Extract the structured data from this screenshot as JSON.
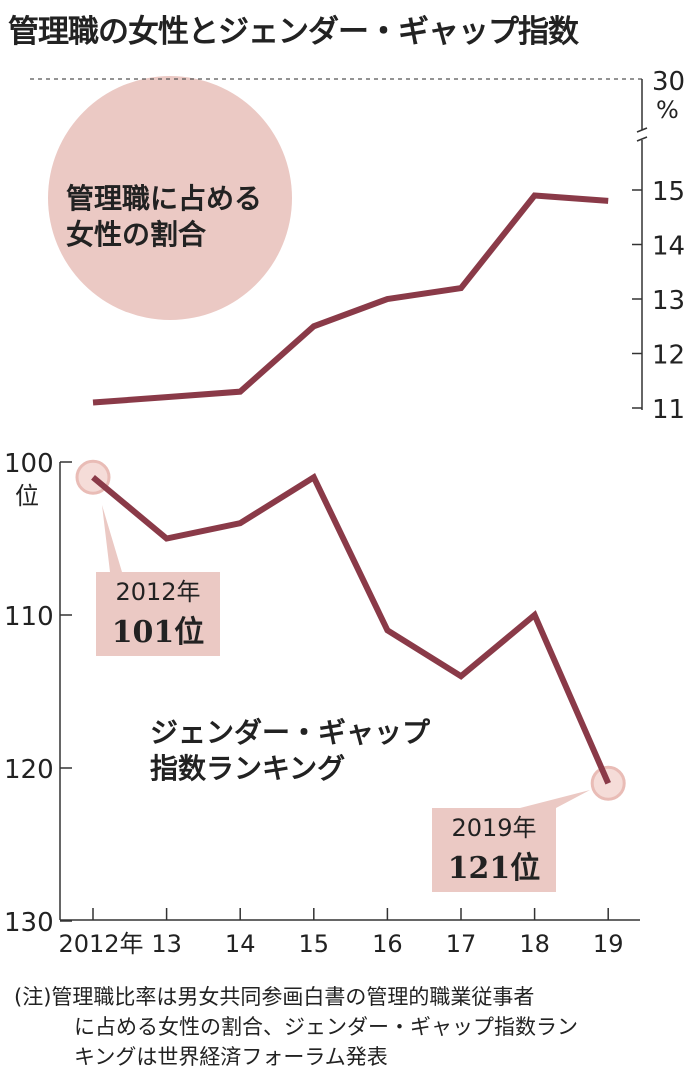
{
  "title": "管理職の女性とジェンダー・ギャップ指数",
  "note": [
    "(注)管理職比率は男女共同参画白書の管理的職業従事者",
    "に占める女性の割合、ジェンダー・ギャップ指数ラン",
    "キングは世界経済フォーラム発表"
  ],
  "colors": {
    "line": "#8a3a48",
    "fill": "#ebc9c4",
    "axis": "#333333"
  },
  "chart_data": [
    {
      "type": "line",
      "label": [
        "管理職に占める",
        "女性の割合"
      ],
      "unit": "%",
      "x": [
        "2012年",
        "13",
        "14",
        "15",
        "16",
        "17",
        "18",
        "19"
      ],
      "values": [
        11.1,
        11.2,
        11.3,
        12.5,
        13.0,
        13.2,
        14.9,
        14.8
      ],
      "ylim": [
        11,
        15
      ],
      "yticks": [
        "11",
        "12",
        "13",
        "14",
        "15"
      ],
      "axis_break_top": "30",
      "grid": false
    },
    {
      "type": "line",
      "label": [
        "ジェンダー・ギャップ",
        "指数ランキング"
      ],
      "unit": "位",
      "x": [
        "2012年",
        "13",
        "14",
        "15",
        "16",
        "17",
        "18",
        "19"
      ],
      "values": [
        101,
        105,
        104,
        101,
        111,
        114,
        110,
        121
      ],
      "ylim": [
        100,
        130
      ],
      "y_inverted": true,
      "yticks": [
        "100",
        "110",
        "120",
        "130"
      ],
      "grid": false,
      "annotations": [
        {
          "year": "2012年",
          "rank": "101",
          "suffix": "位"
        },
        {
          "year": "2019年",
          "rank": "121",
          "suffix": "位"
        }
      ]
    }
  ]
}
